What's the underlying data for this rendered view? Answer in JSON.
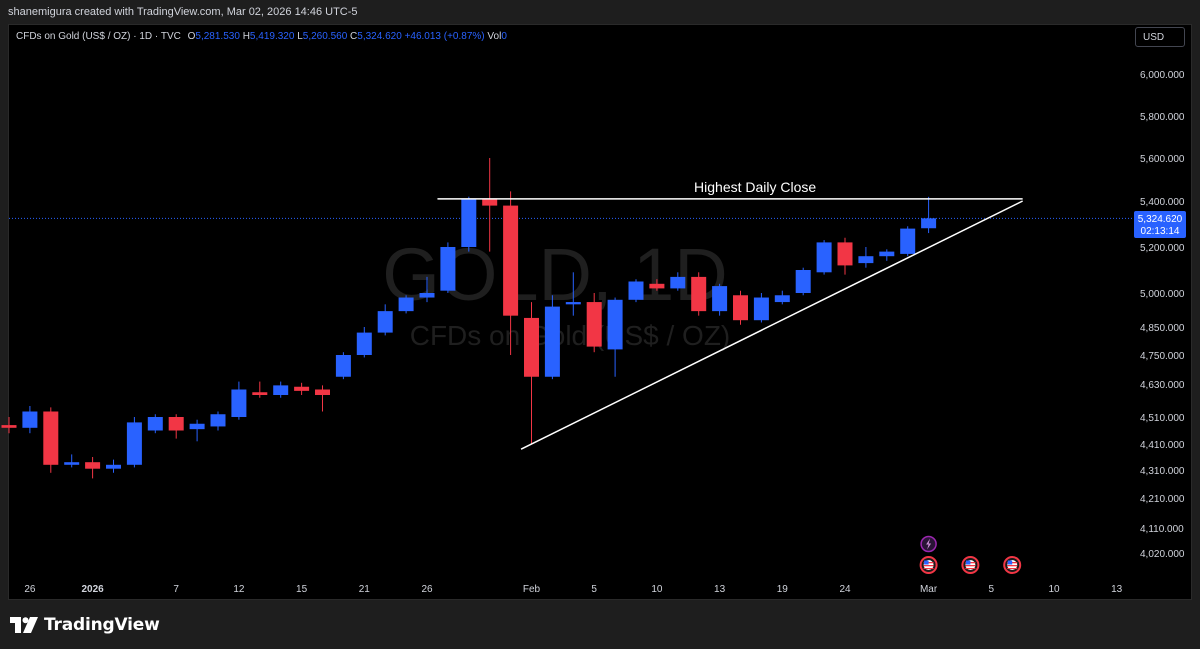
{
  "credit": "shanemigura created with TradingView.com, Mar 02, 2026 14:46 UTC-5",
  "legend": {
    "symbol": "CFDs on Gold (US$ / OZ) · 1D · TVC",
    "open_label": "O",
    "open": "5,281.530",
    "high_label": "H",
    "high": "5,419.320",
    "low_label": "L",
    "low": "5,260.560",
    "close_label": "C",
    "close": "5,324.620",
    "change": "+46.013 (+0.87%)",
    "vol_label": "Vol",
    "vol": "0"
  },
  "currency_button": "USD",
  "watermark": {
    "ticker": "GOLD, 1D",
    "name": "CFDs on Gold (US$ / OZ)"
  },
  "price_tag": {
    "price": "5,324.620",
    "countdown": "02:13:14"
  },
  "logo_text": "TradingView",
  "colors": {
    "up": "#2962ff",
    "down": "#f23645",
    "background": "#000000",
    "axis_text": "#d1d4dc"
  },
  "chart_data": {
    "type": "candlestick",
    "y_axis_ticks": [
      "6,000.000",
      "5,800.000",
      "5,600.000",
      "5,400.000",
      "5,200.000",
      "5,000.000",
      "4,850.000",
      "4,750.000",
      "4,630.000",
      "4,510.000",
      "4,410.000",
      "4,310.000",
      "4,210.000",
      "4,110.000",
      "4,020.000"
    ],
    "y_axis_values": [
      6000,
      5800,
      5600,
      5400,
      5200,
      5000,
      4850,
      4750,
      4630,
      4510,
      4410,
      4310,
      4210,
      4110,
      4020
    ],
    "x_axis_ticks": [
      {
        "label": "26",
        "index": 1
      },
      {
        "label": "2026",
        "index": 4
      },
      {
        "label": "7",
        "index": 8
      },
      {
        "label": "12",
        "index": 11
      },
      {
        "label": "15",
        "index": 14
      },
      {
        "label": "21",
        "index": 17
      },
      {
        "label": "26",
        "index": 20
      },
      {
        "label": "Feb",
        "index": 25
      },
      {
        "label": "5",
        "index": 28
      },
      {
        "label": "10",
        "index": 31
      },
      {
        "label": "13",
        "index": 34
      },
      {
        "label": "19",
        "index": 37
      },
      {
        "label": "24",
        "index": 40
      },
      {
        "label": "Mar",
        "index": 44
      },
      {
        "label": "5",
        "index": 47
      },
      {
        "label": "10",
        "index": 50
      },
      {
        "label": "13",
        "index": 53
      }
    ],
    "candles": [
      {
        "o": 4480,
        "h": 4510,
        "l": 4450,
        "c": 4470
      },
      {
        "o": 4470,
        "h": 4550,
        "l": 4450,
        "c": 4530
      },
      {
        "o": 4530,
        "h": 4545,
        "l": 4300,
        "c": 4330
      },
      {
        "o": 4330,
        "h": 4370,
        "l": 4320,
        "c": 4340
      },
      {
        "o": 4340,
        "h": 4360,
        "l": 4280,
        "c": 4315
      },
      {
        "o": 4315,
        "h": 4350,
        "l": 4300,
        "c": 4330
      },
      {
        "o": 4330,
        "h": 4510,
        "l": 4320,
        "c": 4490
      },
      {
        "o": 4460,
        "h": 4520,
        "l": 4450,
        "c": 4510
      },
      {
        "o": 4510,
        "h": 4520,
        "l": 4430,
        "c": 4460
      },
      {
        "o": 4465,
        "h": 4500,
        "l": 4420,
        "c": 4485
      },
      {
        "o": 4475,
        "h": 4530,
        "l": 4460,
        "c": 4520
      },
      {
        "o": 4510,
        "h": 4640,
        "l": 4500,
        "c": 4610
      },
      {
        "o": 4600,
        "h": 4640,
        "l": 4580,
        "c": 4590
      },
      {
        "o": 4590,
        "h": 4640,
        "l": 4580,
        "c": 4625
      },
      {
        "o": 4620,
        "h": 4635,
        "l": 4590,
        "c": 4605
      },
      {
        "o": 4610,
        "h": 4625,
        "l": 4530,
        "c": 4590
      },
      {
        "o": 4660,
        "h": 4760,
        "l": 4650,
        "c": 4750
      },
      {
        "o": 4750,
        "h": 4850,
        "l": 4740,
        "c": 4830
      },
      {
        "o": 4830,
        "h": 4950,
        "l": 4820,
        "c": 4920
      },
      {
        "o": 4920,
        "h": 4990,
        "l": 4910,
        "c": 4980
      },
      {
        "o": 4980,
        "h": 5070,
        "l": 4960,
        "c": 5000
      },
      {
        "o": 5010,
        "h": 5220,
        "l": 5000,
        "c": 5200
      },
      {
        "o": 5200,
        "h": 5420,
        "l": 5180,
        "c": 5410
      },
      {
        "o": 5410,
        "h": 5600,
        "l": 5180,
        "c": 5380
      },
      {
        "o": 5380,
        "h": 5445,
        "l": 4750,
        "c": 4900
      },
      {
        "o": 4890,
        "h": 4960,
        "l": 4410,
        "c": 4660
      },
      {
        "o": 4660,
        "h": 4990,
        "l": 4650,
        "c": 4940
      },
      {
        "o": 4950,
        "h": 5090,
        "l": 4900,
        "c": 4960
      },
      {
        "o": 4960,
        "h": 5000,
        "l": 4760,
        "c": 4780
      },
      {
        "o": 4770,
        "h": 4980,
        "l": 4660,
        "c": 4970
      },
      {
        "o": 4970,
        "h": 5060,
        "l": 4960,
        "c": 5050
      },
      {
        "o": 5040,
        "h": 5060,
        "l": 5010,
        "c": 5020
      },
      {
        "o": 5020,
        "h": 5090,
        "l": 5010,
        "c": 5070
      },
      {
        "o": 5070,
        "h": 5090,
        "l": 4900,
        "c": 4920
      },
      {
        "o": 4920,
        "h": 5040,
        "l": 4900,
        "c": 5030
      },
      {
        "o": 4990,
        "h": 5010,
        "l": 4860,
        "c": 4880
      },
      {
        "o": 4880,
        "h": 5000,
        "l": 4870,
        "c": 4980
      },
      {
        "o": 4960,
        "h": 5010,
        "l": 4950,
        "c": 4990
      },
      {
        "o": 5000,
        "h": 5110,
        "l": 4990,
        "c": 5100
      },
      {
        "o": 5090,
        "h": 5230,
        "l": 5080,
        "c": 5220
      },
      {
        "o": 5220,
        "h": 5240,
        "l": 5080,
        "c": 5120
      },
      {
        "o": 5130,
        "h": 5200,
        "l": 5110,
        "c": 5160
      },
      {
        "o": 5160,
        "h": 5190,
        "l": 5140,
        "c": 5180
      },
      {
        "o": 5170,
        "h": 5290,
        "l": 5160,
        "c": 5280
      },
      {
        "o": 5281.53,
        "h": 5419.32,
        "l": 5260.56,
        "c": 5324.62
      }
    ],
    "annotations": [
      {
        "type": "horizontal-line",
        "label": "Highest Daily Close",
        "price": 5410,
        "from_index": 20.5,
        "to_index": 48.5
      },
      {
        "type": "trendline",
        "from": {
          "index": 24.5,
          "price": 4390
        },
        "to": {
          "index": 48.5,
          "price": 5400
        }
      }
    ],
    "current_price": 5324.62,
    "event_markers": [
      {
        "icon": "lightning-icon",
        "index": 44
      },
      {
        "icon": "us-flag-icon",
        "index": 44
      },
      {
        "icon": "us-flag-icon",
        "index": 46
      },
      {
        "icon": "us-flag-icon",
        "index": 48
      }
    ]
  }
}
